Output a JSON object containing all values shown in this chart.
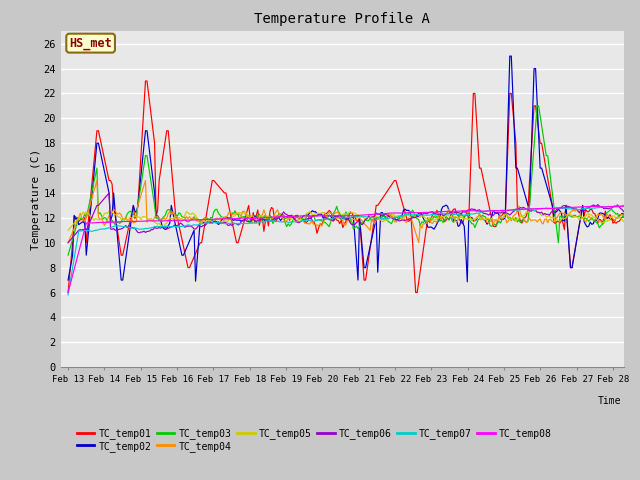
{
  "title": "Temperature Profile A",
  "xlabel": "Time",
  "ylabel": "Temperature (C)",
  "ylim": [
    0,
    27
  ],
  "yticks": [
    0,
    2,
    4,
    6,
    8,
    10,
    12,
    14,
    16,
    18,
    20,
    22,
    24,
    26
  ],
  "annotation_text": "HS_met",
  "annotation_color": "#8B0000",
  "annotation_bg": "#FFFFCC",
  "annotation_border": "#8B6914",
  "series_colors": {
    "TC_temp01": "#FF0000",
    "TC_temp02": "#0000CD",
    "TC_temp03": "#00CC00",
    "TC_temp04": "#FF8C00",
    "TC_temp05": "#CCCC00",
    "TC_temp06": "#9900CC",
    "TC_temp07": "#00CCCC",
    "TC_temp08": "#FF00FF"
  },
  "x_labels": [
    "Feb 13",
    "Feb 14",
    "Feb 15",
    "Feb 16",
    "Feb 17",
    "Feb 18",
    "Feb 19",
    "Feb 20",
    "Feb 21",
    "Feb 22",
    "Feb 23",
    "Feb 24",
    "Feb 25",
    "Feb 26",
    "Feb 27",
    "Feb 28"
  ],
  "fig_facecolor": "#C8C8C8",
  "plot_facecolor": "#E8E8E8",
  "grid_color": "#FFFFFF"
}
